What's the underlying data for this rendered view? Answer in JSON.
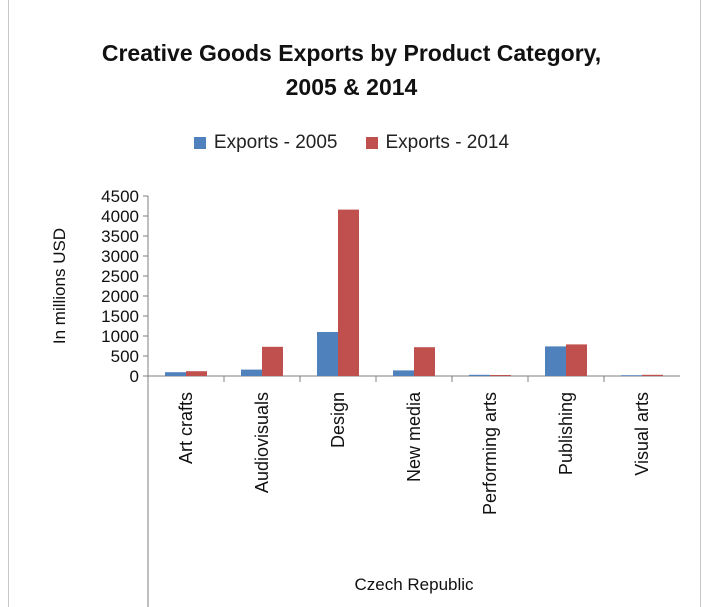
{
  "chart_data": {
    "type": "bar",
    "title_lines": [
      "Creative Goods Exports by Product Category,",
      "2005 & 2014"
    ],
    "ylabel": "In millions USD",
    "xlabel": "Czech Republic",
    "ylim": [
      0,
      4500
    ],
    "yticks": [
      0,
      500,
      1000,
      1500,
      2000,
      2500,
      3000,
      3500,
      4000,
      4500
    ],
    "grid": false,
    "legend_position": "top",
    "categories": [
      "Art crafts",
      "Audiovisuals",
      "Design",
      "New media",
      "Performing arts",
      "Publishing",
      "Visual arts"
    ],
    "series": [
      {
        "name": "Exports - 2005",
        "color": "#4f81bd",
        "values": [
          95,
          160,
          1100,
          140,
          30,
          740,
          20
        ]
      },
      {
        "name": "Exports - 2014",
        "color": "#c0504d",
        "values": [
          120,
          730,
          4160,
          720,
          25,
          790,
          30
        ]
      }
    ]
  }
}
